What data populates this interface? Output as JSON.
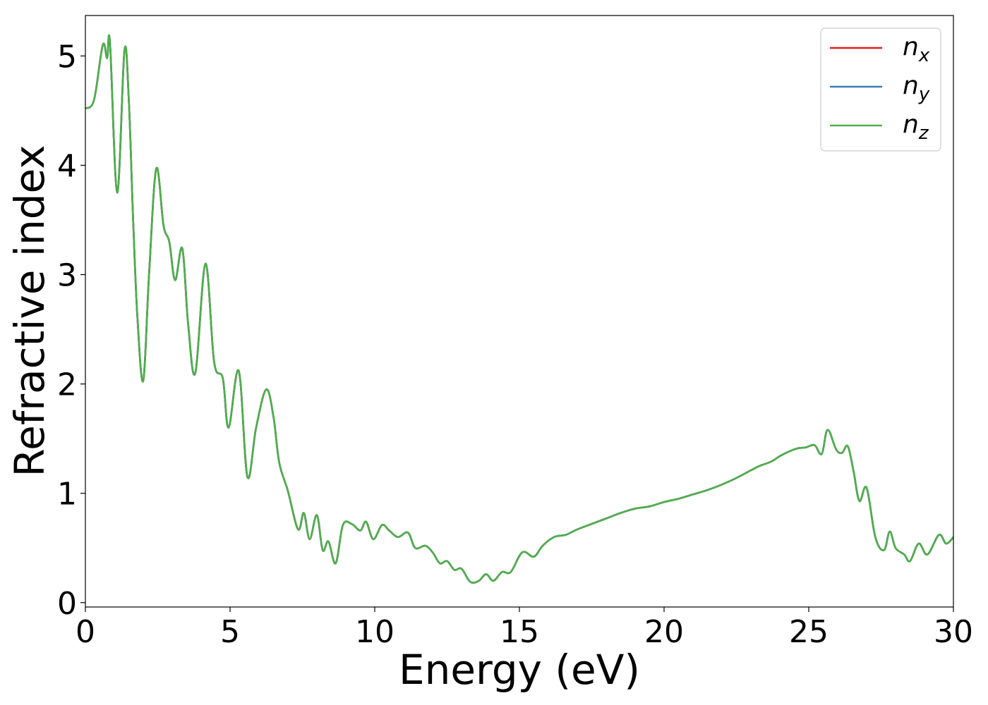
{
  "chart_data": {
    "type": "line",
    "title": "",
    "xlabel": "Energy (eV)",
    "ylabel": "Refractive index",
    "xlim": [
      0,
      30
    ],
    "ylim": [
      -0.04,
      5.37
    ],
    "xticks": [
      0,
      5,
      10,
      15,
      20,
      25,
      30
    ],
    "yticks": [
      0,
      1,
      2,
      3,
      4,
      5
    ],
    "grid": false,
    "legend_position": "top-right",
    "x": [
      0,
      0.3,
      0.6,
      0.75,
      0.85,
      1.1,
      1.35,
      1.5,
      1.65,
      1.8,
      2.0,
      2.2,
      2.45,
      2.7,
      2.9,
      3.1,
      3.35,
      3.55,
      3.8,
      4.15,
      4.45,
      4.75,
      4.95,
      5.3,
      5.6,
      5.9,
      6.25,
      6.5,
      6.7,
      7.0,
      7.35,
      7.55,
      7.75,
      8.0,
      8.2,
      8.4,
      8.65,
      8.9,
      9.2,
      9.5,
      9.7,
      9.95,
      10.25,
      10.5,
      10.8,
      11.15,
      11.4,
      11.75,
      12.0,
      12.25,
      12.5,
      12.75,
      13.0,
      13.3,
      13.6,
      13.85,
      14.1,
      14.4,
      14.7,
      15.1,
      15.5,
      15.8,
      16.2,
      16.6,
      17.0,
      17.5,
      18.0,
      18.5,
      19.0,
      19.5,
      20.0,
      20.5,
      21.0,
      21.5,
      22.0,
      22.5,
      23.0,
      23.3,
      23.7,
      24.0,
      24.3,
      24.6,
      24.9,
      25.2,
      25.45,
      25.65,
      25.95,
      26.15,
      26.35,
      26.55,
      26.75,
      27.0,
      27.3,
      27.6,
      27.8,
      28.0,
      28.3,
      28.5,
      28.8,
      29.1,
      29.5,
      29.75,
      30.0
    ],
    "series": [
      {
        "name": "n_x",
        "color": "#e41a1c",
        "values": [
          4.52,
          4.6,
          5.1,
          4.98,
          5.12,
          3.75,
          5.05,
          4.6,
          3.5,
          2.6,
          2.03,
          3.0,
          3.97,
          3.45,
          3.3,
          2.95,
          3.24,
          2.55,
          2.1,
          3.1,
          2.2,
          2.05,
          1.6,
          2.12,
          1.15,
          1.6,
          1.95,
          1.7,
          1.28,
          1.02,
          0.67,
          0.82,
          0.58,
          0.8,
          0.48,
          0.56,
          0.36,
          0.71,
          0.72,
          0.66,
          0.74,
          0.58,
          0.71,
          0.66,
          0.6,
          0.64,
          0.5,
          0.52,
          0.46,
          0.36,
          0.38,
          0.3,
          0.31,
          0.19,
          0.2,
          0.26,
          0.2,
          0.28,
          0.28,
          0.46,
          0.42,
          0.52,
          0.6,
          0.62,
          0.67,
          0.72,
          0.77,
          0.82,
          0.86,
          0.88,
          0.92,
          0.95,
          0.99,
          1.03,
          1.08,
          1.14,
          1.21,
          1.25,
          1.29,
          1.34,
          1.38,
          1.41,
          1.42,
          1.44,
          1.36,
          1.58,
          1.4,
          1.37,
          1.43,
          1.2,
          0.93,
          1.05,
          0.6,
          0.48,
          0.65,
          0.5,
          0.44,
          0.38,
          0.54,
          0.44,
          0.62,
          0.54,
          0.6
        ]
      },
      {
        "name": "n_y",
        "color": "#377eb8",
        "values": [
          4.52,
          4.6,
          5.1,
          4.98,
          5.12,
          3.75,
          5.05,
          4.6,
          3.5,
          2.6,
          2.03,
          3.0,
          3.97,
          3.45,
          3.3,
          2.95,
          3.24,
          2.55,
          2.1,
          3.1,
          2.2,
          2.05,
          1.6,
          2.12,
          1.15,
          1.6,
          1.95,
          1.7,
          1.28,
          1.02,
          0.67,
          0.82,
          0.58,
          0.8,
          0.48,
          0.56,
          0.36,
          0.71,
          0.72,
          0.66,
          0.74,
          0.58,
          0.71,
          0.66,
          0.6,
          0.64,
          0.5,
          0.52,
          0.46,
          0.36,
          0.38,
          0.3,
          0.31,
          0.19,
          0.2,
          0.26,
          0.2,
          0.28,
          0.28,
          0.46,
          0.42,
          0.52,
          0.6,
          0.62,
          0.67,
          0.72,
          0.77,
          0.82,
          0.86,
          0.88,
          0.92,
          0.95,
          0.99,
          1.03,
          1.08,
          1.14,
          1.21,
          1.25,
          1.29,
          1.34,
          1.38,
          1.41,
          1.42,
          1.44,
          1.36,
          1.58,
          1.4,
          1.37,
          1.43,
          1.2,
          0.93,
          1.05,
          0.6,
          0.48,
          0.65,
          0.5,
          0.44,
          0.38,
          0.54,
          0.44,
          0.62,
          0.54,
          0.6
        ]
      },
      {
        "name": "n_z",
        "color": "#4daf4a",
        "values": [
          4.52,
          4.6,
          5.1,
          4.98,
          5.12,
          3.75,
          5.05,
          4.6,
          3.5,
          2.6,
          2.03,
          3.0,
          3.97,
          3.45,
          3.3,
          2.95,
          3.24,
          2.55,
          2.1,
          3.1,
          2.2,
          2.05,
          1.6,
          2.12,
          1.15,
          1.6,
          1.95,
          1.7,
          1.28,
          1.02,
          0.67,
          0.82,
          0.58,
          0.8,
          0.48,
          0.56,
          0.36,
          0.71,
          0.72,
          0.66,
          0.74,
          0.58,
          0.71,
          0.66,
          0.6,
          0.64,
          0.5,
          0.52,
          0.46,
          0.36,
          0.38,
          0.3,
          0.31,
          0.19,
          0.2,
          0.26,
          0.2,
          0.28,
          0.28,
          0.46,
          0.42,
          0.52,
          0.6,
          0.62,
          0.67,
          0.72,
          0.77,
          0.82,
          0.86,
          0.88,
          0.92,
          0.95,
          0.99,
          1.03,
          1.08,
          1.14,
          1.21,
          1.25,
          1.29,
          1.34,
          1.38,
          1.41,
          1.42,
          1.44,
          1.36,
          1.58,
          1.4,
          1.37,
          1.43,
          1.2,
          0.93,
          1.05,
          0.6,
          0.48,
          0.65,
          0.5,
          0.44,
          0.38,
          0.54,
          0.44,
          0.62,
          0.54,
          0.6
        ]
      }
    ],
    "legend": [
      {
        "base": "n",
        "sub": "x",
        "color": "#e41a1c"
      },
      {
        "base": "n",
        "sub": "y",
        "color": "#377eb8"
      },
      {
        "base": "n",
        "sub": "z",
        "color": "#4daf4a"
      }
    ]
  }
}
